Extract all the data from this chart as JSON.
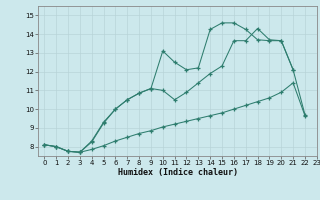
{
  "xlabel": "Humidex (Indice chaleur)",
  "bg_color": "#cce8ec",
  "line_color": "#2e7d6e",
  "grid_color": "#b8d4d8",
  "xlim": [
    -0.5,
    23
  ],
  "ylim": [
    7.5,
    15.5
  ],
  "xticks": [
    0,
    1,
    2,
    3,
    4,
    5,
    6,
    7,
    8,
    9,
    10,
    11,
    12,
    13,
    14,
    15,
    16,
    17,
    18,
    19,
    20,
    21,
    22,
    23
  ],
  "yticks": [
    8,
    9,
    10,
    11,
    12,
    13,
    14,
    15
  ],
  "series": [
    {
      "x": [
        0,
        1,
        2,
        3,
        4,
        5,
        6,
        7,
        8,
        9,
        10,
        11,
        12,
        13,
        14,
        15,
        16,
        17,
        18,
        19,
        20,
        21
      ],
      "y": [
        8.1,
        8.0,
        7.75,
        7.7,
        8.25,
        9.25,
        10.0,
        10.5,
        10.85,
        11.1,
        13.1,
        12.5,
        12.1,
        12.2,
        14.25,
        14.6,
        14.6,
        14.25,
        13.7,
        13.65,
        13.65,
        12.1
      ]
    },
    {
      "x": [
        0,
        1,
        2,
        3,
        4,
        5,
        6,
        7,
        8,
        9,
        10,
        11,
        12,
        13,
        14,
        15,
        16,
        17,
        18,
        19,
        20,
        21,
        22
      ],
      "y": [
        8.1,
        8.0,
        7.75,
        7.7,
        8.3,
        9.3,
        10.0,
        10.5,
        10.85,
        11.1,
        11.0,
        10.5,
        10.9,
        11.4,
        11.9,
        12.3,
        13.65,
        13.65,
        14.3,
        13.7,
        13.65,
        12.1,
        9.7
      ]
    },
    {
      "x": [
        0,
        1,
        2,
        3,
        4,
        5,
        6,
        7,
        8,
        9,
        10,
        11,
        12,
        13,
        14,
        15,
        16,
        17,
        18,
        19,
        20,
        21,
        22
      ],
      "y": [
        8.1,
        8.0,
        7.75,
        7.7,
        7.85,
        8.05,
        8.3,
        8.5,
        8.7,
        8.85,
        9.05,
        9.2,
        9.35,
        9.5,
        9.65,
        9.8,
        10.0,
        10.2,
        10.4,
        10.6,
        10.9,
        11.4,
        9.65
      ]
    }
  ]
}
